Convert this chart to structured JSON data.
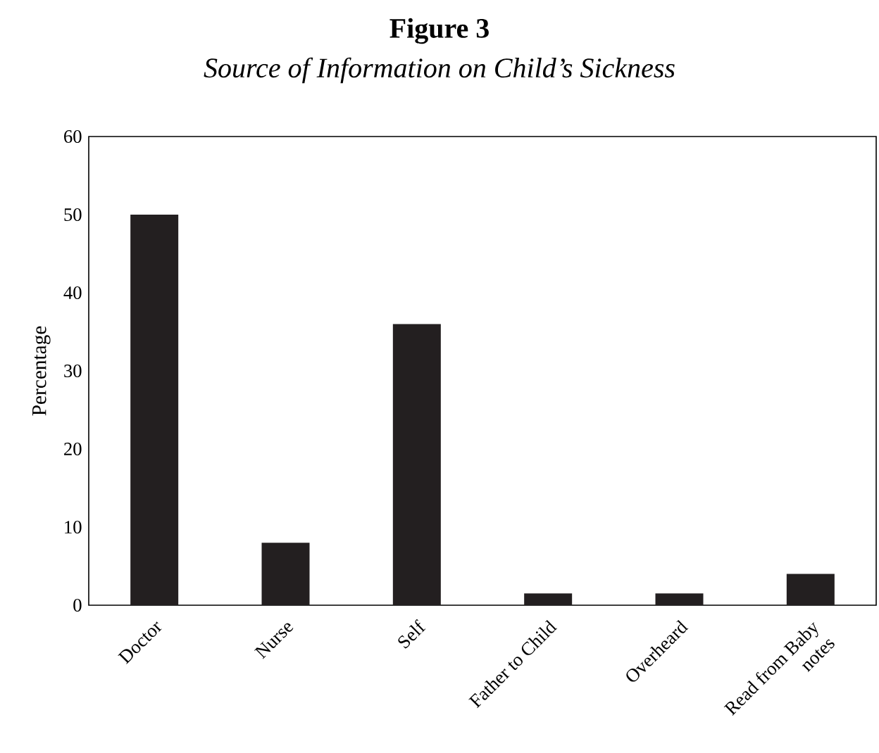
{
  "chart_data": {
    "type": "bar",
    "title": "Figure 3",
    "subtitle": "Source of Information on Child’s Sickness",
    "ylabel": "Percentage",
    "categories": [
      "Doctor",
      "Nurse",
      "Self",
      "Father to Child",
      "Overheard",
      "Read from Baby notes"
    ],
    "values": [
      50,
      8,
      36,
      1.5,
      1.5,
      4
    ],
    "color": "#231f20",
    "ylim": [
      0,
      60
    ],
    "yticks": [
      0,
      10,
      20,
      30,
      40,
      50,
      60
    ],
    "grid": false
  }
}
